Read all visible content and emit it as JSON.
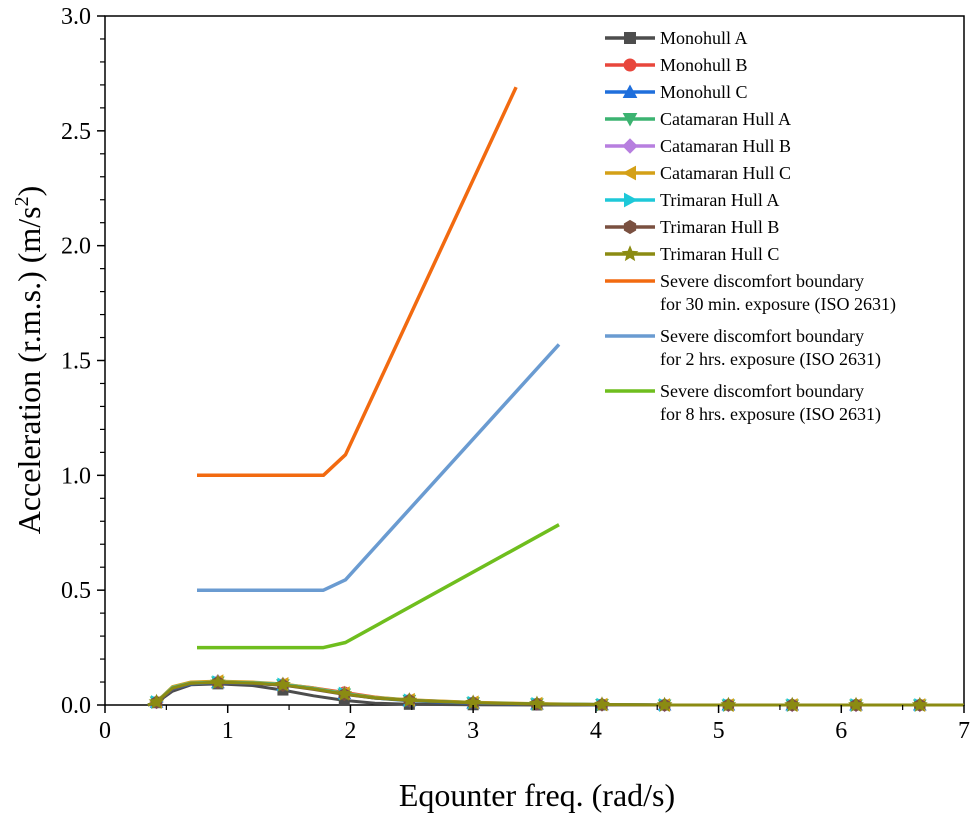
{
  "chart_data": {
    "type": "line",
    "title": "",
    "xlabel": "Eqounter freq. (rad/s)",
    "ylabel_main": "Acceleration (r.m.s.) (m/s",
    "ylabel_sup": "2",
    "ylabel_close": ")",
    "xlim": [
      0,
      7
    ],
    "ylim": [
      0,
      3.0
    ],
    "x_ticks": [
      0,
      1,
      2,
      3,
      4,
      5,
      6,
      7
    ],
    "x_tick_labels": [
      "0",
      "1",
      "2",
      "3",
      "4",
      "5",
      "6",
      "7"
    ],
    "y_ticks": [
      0,
      0.5,
      1.0,
      1.5,
      2.0,
      2.5,
      3.0
    ],
    "y_tick_labels": [
      "0.0",
      "0.5",
      "1.0",
      "1.5",
      "2.0",
      "2.5",
      "3.0"
    ],
    "grid": false,
    "legend_position": "top-right",
    "series": [
      {
        "name": "Monohull A",
        "color": "#4d4d4d",
        "marker": "square",
        "x": [
          0.35,
          0.42,
          0.55,
          0.7,
          0.92,
          1.2,
          1.45,
          1.7,
          1.95,
          2.2,
          2.48,
          3.0,
          3.52,
          4.05,
          4.56,
          5.08,
          5.6,
          6.12,
          6.64,
          7.0
        ],
        "y": [
          0.0,
          0.01,
          0.06,
          0.088,
          0.092,
          0.085,
          0.065,
          0.04,
          0.02,
          0.008,
          0.003,
          0.001,
          0,
          0,
          0,
          0,
          0,
          0,
          0,
          0
        ]
      },
      {
        "name": "Monohull B",
        "color": "#e8463c",
        "marker": "circle",
        "x": [
          0.35,
          0.42,
          0.55,
          0.7,
          0.92,
          1.2,
          1.45,
          1.7,
          1.95,
          2.2,
          2.48,
          3.0,
          3.52,
          4.05,
          4.56,
          5.08,
          5.6,
          6.12,
          6.64,
          7.0
        ],
        "y": [
          0.0,
          0.012,
          0.07,
          0.093,
          0.098,
          0.095,
          0.09,
          0.075,
          0.055,
          0.035,
          0.02,
          0.01,
          0.005,
          0.002,
          0,
          0,
          0,
          0,
          0,
          0
        ]
      },
      {
        "name": "Monohull C",
        "color": "#1f6fdc",
        "marker": "triangle-up",
        "x": [
          0.35,
          0.42,
          0.55,
          0.7,
          0.92,
          1.2,
          1.45,
          1.7,
          1.95,
          2.2,
          2.48,
          3.0,
          3.52,
          4.05,
          4.56,
          5.08,
          5.6,
          6.12,
          6.64,
          7.0
        ],
        "y": [
          0.0,
          0.012,
          0.07,
          0.092,
          0.097,
          0.093,
          0.087,
          0.07,
          0.05,
          0.03,
          0.018,
          0.008,
          0.004,
          0.001,
          0,
          0,
          0,
          0,
          0,
          0
        ]
      },
      {
        "name": "Catamaran Hull A",
        "color": "#3cb371",
        "marker": "triangle-down",
        "x": [
          0.35,
          0.42,
          0.55,
          0.7,
          0.92,
          1.2,
          1.45,
          1.7,
          1.95,
          2.2,
          2.48,
          3.0,
          3.52,
          4.05,
          4.56,
          5.08,
          5.6,
          6.12,
          6.64,
          7.0
        ],
        "y": [
          0.0,
          0.013,
          0.075,
          0.095,
          0.1,
          0.095,
          0.088,
          0.07,
          0.048,
          0.03,
          0.02,
          0.01,
          0.005,
          0.002,
          0,
          0,
          0,
          0,
          0,
          0
        ]
      },
      {
        "name": "Catamaran Hull B",
        "color": "#b77fdf",
        "marker": "diamond",
        "x": [
          0.35,
          0.42,
          0.55,
          0.7,
          0.92,
          1.2,
          1.45,
          1.7,
          1.95,
          2.2,
          2.48,
          3.0,
          3.52,
          4.05,
          4.56,
          5.08,
          5.6,
          6.12,
          6.64,
          7.0
        ],
        "y": [
          0.0,
          0.013,
          0.078,
          0.098,
          0.103,
          0.098,
          0.09,
          0.072,
          0.05,
          0.032,
          0.022,
          0.011,
          0.005,
          0.002,
          0,
          0,
          0,
          0,
          0,
          0
        ]
      },
      {
        "name": "Catamaran Hull C",
        "color": "#d4a017",
        "marker": "triangle-left",
        "x": [
          0.35,
          0.42,
          0.55,
          0.7,
          0.92,
          1.2,
          1.45,
          1.7,
          1.95,
          2.2,
          2.48,
          3.0,
          3.52,
          4.05,
          4.56,
          5.08,
          5.6,
          6.12,
          6.64,
          7.0
        ],
        "y": [
          0.0,
          0.014,
          0.08,
          0.1,
          0.104,
          0.1,
          0.092,
          0.074,
          0.052,
          0.034,
          0.023,
          0.012,
          0.006,
          0.002,
          0,
          0,
          0,
          0,
          0,
          0
        ]
      },
      {
        "name": "Trimaran Hull A",
        "color": "#1ec8d8",
        "marker": "triangle-right",
        "x": [
          0.35,
          0.42,
          0.55,
          0.7,
          0.92,
          1.2,
          1.45,
          1.7,
          1.95,
          2.2,
          2.48,
          3.0,
          3.52,
          4.05,
          4.56,
          5.08,
          5.6,
          6.12,
          6.64,
          7.0
        ],
        "y": [
          0.0,
          0.013,
          0.076,
          0.096,
          0.1,
          0.097,
          0.09,
          0.072,
          0.05,
          0.032,
          0.021,
          0.01,
          0.005,
          0.002,
          0,
          0,
          0,
          0,
          0,
          0
        ]
      },
      {
        "name": "Trimaran Hull B",
        "color": "#7a5040",
        "marker": "hexagon",
        "x": [
          0.35,
          0.42,
          0.55,
          0.7,
          0.92,
          1.2,
          1.45,
          1.7,
          1.95,
          2.2,
          2.48,
          3.0,
          3.52,
          4.05,
          4.56,
          5.08,
          5.6,
          6.12,
          6.64,
          7.0
        ],
        "y": [
          0.0,
          0.012,
          0.072,
          0.094,
          0.098,
          0.094,
          0.086,
          0.068,
          0.046,
          0.03,
          0.02,
          0.009,
          0.004,
          0.001,
          0,
          0,
          0,
          0,
          0,
          0
        ]
      },
      {
        "name": "Trimaran Hull C",
        "color": "#8b8b12",
        "marker": "star",
        "x": [
          0.35,
          0.42,
          0.55,
          0.7,
          0.92,
          1.2,
          1.45,
          1.7,
          1.95,
          2.2,
          2.48,
          3.0,
          3.52,
          4.05,
          4.56,
          5.08,
          5.6,
          6.12,
          6.64,
          7.0
        ],
        "y": [
          0.0,
          0.013,
          0.074,
          0.095,
          0.099,
          0.096,
          0.088,
          0.07,
          0.048,
          0.031,
          0.02,
          0.01,
          0.005,
          0.002,
          0,
          0,
          0,
          0,
          0,
          0
        ]
      },
      {
        "name": "Severe discomfort boundary\nfor 30 min. exposure (ISO 2631)",
        "color": "#f26a10",
        "marker": "none",
        "x": [
          0.75,
          1.78,
          1.96,
          3.35
        ],
        "y": [
          1.0,
          1.0,
          1.09,
          2.69
        ]
      },
      {
        "name": "Severe discomfort boundary\nfor 2 hrs. exposure (ISO 2631)",
        "color": "#6a9bd1",
        "marker": "none",
        "x": [
          0.75,
          1.78,
          1.96,
          3.7
        ],
        "y": [
          0.5,
          0.5,
          0.545,
          1.57
        ]
      },
      {
        "name": "Severe discomfort boundary\nfor 8 hrs. exposure (ISO 2631)",
        "color": "#6fbe1e",
        "marker": "none",
        "x": [
          0.75,
          1.78,
          1.96,
          3.7
        ],
        "y": [
          0.25,
          0.25,
          0.272,
          0.785
        ]
      }
    ]
  }
}
